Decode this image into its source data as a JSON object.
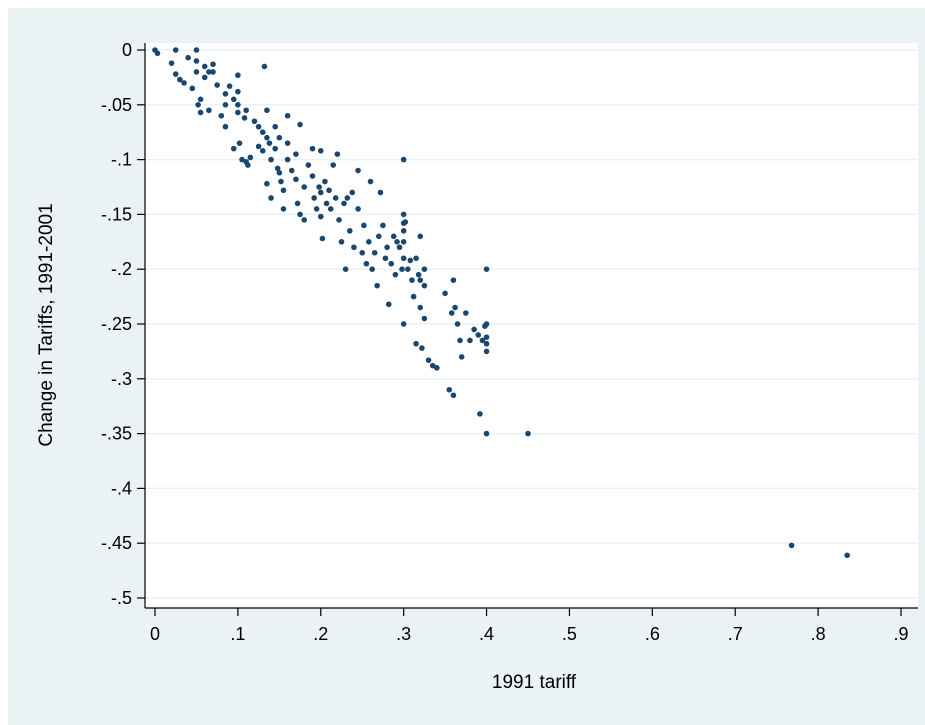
{
  "chart_data": {
    "type": "scatter",
    "title": "",
    "xlabel": "1991 tariff",
    "ylabel": "Change in Tariffs, 1991-2001",
    "xlim": [
      0,
      0.9
    ],
    "ylim": [
      -0.5,
      0
    ],
    "x_ticks": [
      0,
      0.1,
      0.2,
      0.3,
      0.4,
      0.5,
      0.6,
      0.7,
      0.8,
      0.9
    ],
    "x_tick_labels": [
      "0",
      ".1",
      ".2",
      ".3",
      ".4",
      ".5",
      ".6",
      ".7",
      ".8",
      ".9"
    ],
    "y_ticks": [
      0,
      -0.05,
      -0.1,
      -0.15,
      -0.2,
      -0.25,
      -0.3,
      -0.35,
      -0.4,
      -0.45,
      -0.5
    ],
    "y_tick_labels": [
      "0",
      "-.05",
      "-.1",
      "-.15",
      "-.2",
      "-.25",
      "-.3",
      "-.35",
      "-.4",
      "-.45",
      "-.5"
    ],
    "grid": "horizontal",
    "colors": {
      "background": "#eaf2f3",
      "plot_area": "#ffffff",
      "marker": "#1a476f",
      "grid": "#eaf2f3"
    },
    "points": [
      [
        0,
        0
      ],
      [
        0.003,
        -0.003
      ],
      [
        0.02,
        -0.012
      ],
      [
        0.025,
        0
      ],
      [
        0.025,
        -0.022
      ],
      [
        0.03,
        -0.027
      ],
      [
        0.035,
        -0.03
      ],
      [
        0.04,
        -0.007
      ],
      [
        0.045,
        -0.035
      ],
      [
        0.05,
        0
      ],
      [
        0.05,
        -0.01
      ],
      [
        0.05,
        -0.02
      ],
      [
        0.052,
        -0.05
      ],
      [
        0.055,
        -0.045
      ],
      [
        0.055,
        -0.057
      ],
      [
        0.06,
        -0.015
      ],
      [
        0.06,
        -0.025
      ],
      [
        0.065,
        -0.02
      ],
      [
        0.065,
        -0.055
      ],
      [
        0.07,
        -0.013
      ],
      [
        0.07,
        -0.02
      ],
      [
        0.075,
        -0.032
      ],
      [
        0.08,
        -0.06
      ],
      [
        0.085,
        -0.04
      ],
      [
        0.085,
        -0.05
      ],
      [
        0.085,
        -0.07
      ],
      [
        0.09,
        -0.033
      ],
      [
        0.095,
        -0.045
      ],
      [
        0.095,
        -0.09
      ],
      [
        0.1,
        -0.023
      ],
      [
        0.1,
        -0.038
      ],
      [
        0.1,
        -0.05
      ],
      [
        0.1,
        -0.057
      ],
      [
        0.102,
        -0.085
      ],
      [
        0.105,
        -0.1
      ],
      [
        0.108,
        -0.062
      ],
      [
        0.11,
        -0.055
      ],
      [
        0.11,
        -0.102
      ],
      [
        0.112,
        -0.105
      ],
      [
        0.115,
        -0.098
      ],
      [
        0.12,
        -0.065
      ],
      [
        0.125,
        -0.07
      ],
      [
        0.125,
        -0.088
      ],
      [
        0.13,
        -0.075
      ],
      [
        0.13,
        -0.092
      ],
      [
        0.132,
        -0.015
      ],
      [
        0.135,
        -0.055
      ],
      [
        0.135,
        -0.08
      ],
      [
        0.135,
        -0.122
      ],
      [
        0.138,
        -0.085
      ],
      [
        0.14,
        -0.1
      ],
      [
        0.14,
        -0.135
      ],
      [
        0.145,
        -0.07
      ],
      [
        0.145,
        -0.09
      ],
      [
        0.148,
        -0.108
      ],
      [
        0.15,
        -0.08
      ],
      [
        0.15,
        -0.112
      ],
      [
        0.152,
        -0.12
      ],
      [
        0.155,
        -0.128
      ],
      [
        0.155,
        -0.145
      ],
      [
        0.16,
        -0.06
      ],
      [
        0.16,
        -0.085
      ],
      [
        0.16,
        -0.1
      ],
      [
        0.165,
        -0.11
      ],
      [
        0.17,
        -0.095
      ],
      [
        0.17,
        -0.118
      ],
      [
        0.172,
        -0.14
      ],
      [
        0.175,
        -0.068
      ],
      [
        0.175,
        -0.15
      ],
      [
        0.18,
        -0.125
      ],
      [
        0.18,
        -0.155
      ],
      [
        0.185,
        -0.105
      ],
      [
        0.19,
        -0.09
      ],
      [
        0.19,
        -0.115
      ],
      [
        0.192,
        -0.135
      ],
      [
        0.195,
        -0.145
      ],
      [
        0.198,
        -0.125
      ],
      [
        0.2,
        -0.092
      ],
      [
        0.2,
        -0.13
      ],
      [
        0.2,
        -0.152
      ],
      [
        0.202,
        -0.172
      ],
      [
        0.205,
        -0.12
      ],
      [
        0.207,
        -0.14
      ],
      [
        0.21,
        -0.128
      ],
      [
        0.212,
        -0.145
      ],
      [
        0.215,
        -0.105
      ],
      [
        0.218,
        -0.135
      ],
      [
        0.22,
        -0.095
      ],
      [
        0.222,
        -0.155
      ],
      [
        0.225,
        -0.175
      ],
      [
        0.228,
        -0.14
      ],
      [
        0.23,
        -0.2
      ],
      [
        0.232,
        -0.135
      ],
      [
        0.235,
        -0.165
      ],
      [
        0.238,
        -0.13
      ],
      [
        0.24,
        -0.18
      ],
      [
        0.245,
        -0.11
      ],
      [
        0.245,
        -0.145
      ],
      [
        0.25,
        -0.185
      ],
      [
        0.252,
        -0.16
      ],
      [
        0.255,
        -0.195
      ],
      [
        0.258,
        -0.175
      ],
      [
        0.26,
        -0.12
      ],
      [
        0.262,
        -0.2
      ],
      [
        0.265,
        -0.185
      ],
      [
        0.268,
        -0.215
      ],
      [
        0.27,
        -0.17
      ],
      [
        0.272,
        -0.13
      ],
      [
        0.275,
        -0.16
      ],
      [
        0.278,
        -0.19
      ],
      [
        0.28,
        -0.18
      ],
      [
        0.282,
        -0.232
      ],
      [
        0.285,
        -0.195
      ],
      [
        0.288,
        -0.17
      ],
      [
        0.29,
        -0.205
      ],
      [
        0.292,
        -0.175
      ],
      [
        0.295,
        -0.18
      ],
      [
        0.298,
        -0.2
      ],
      [
        0.3,
        -0.1
      ],
      [
        0.3,
        -0.15
      ],
      [
        0.3,
        -0.158
      ],
      [
        0.3,
        -0.165
      ],
      [
        0.3,
        -0.175
      ],
      [
        0.3,
        -0.19
      ],
      [
        0.3,
        -0.25
      ],
      [
        0.302,
        -0.157
      ],
      [
        0.305,
        -0.2
      ],
      [
        0.308,
        -0.192
      ],
      [
        0.31,
        -0.21
      ],
      [
        0.312,
        -0.225
      ],
      [
        0.315,
        -0.19
      ],
      [
        0.315,
        -0.268
      ],
      [
        0.318,
        -0.205
      ],
      [
        0.32,
        -0.17
      ],
      [
        0.32,
        -0.21
      ],
      [
        0.32,
        -0.235
      ],
      [
        0.322,
        -0.272
      ],
      [
        0.325,
        -0.2
      ],
      [
        0.325,
        -0.215
      ],
      [
        0.325,
        -0.245
      ],
      [
        0.33,
        -0.283
      ],
      [
        0.335,
        -0.288
      ],
      [
        0.34,
        -0.29
      ],
      [
        0.35,
        -0.222
      ],
      [
        0.355,
        -0.31
      ],
      [
        0.358,
        -0.24
      ],
      [
        0.36,
        -0.21
      ],
      [
        0.36,
        -0.315
      ],
      [
        0.362,
        -0.235
      ],
      [
        0.365,
        -0.25
      ],
      [
        0.368,
        -0.265
      ],
      [
        0.37,
        -0.28
      ],
      [
        0.375,
        -0.24
      ],
      [
        0.38,
        -0.265
      ],
      [
        0.385,
        -0.255
      ],
      [
        0.39,
        -0.26
      ],
      [
        0.392,
        -0.332
      ],
      [
        0.395,
        -0.265
      ],
      [
        0.398,
        -0.252
      ],
      [
        0.4,
        -0.2
      ],
      [
        0.4,
        -0.25
      ],
      [
        0.4,
        -0.262
      ],
      [
        0.4,
        -0.268
      ],
      [
        0.4,
        -0.275
      ],
      [
        0.4,
        -0.35
      ],
      [
        0.45,
        -0.35
      ],
      [
        0.768,
        -0.452
      ],
      [
        0.835,
        -0.461
      ]
    ]
  }
}
